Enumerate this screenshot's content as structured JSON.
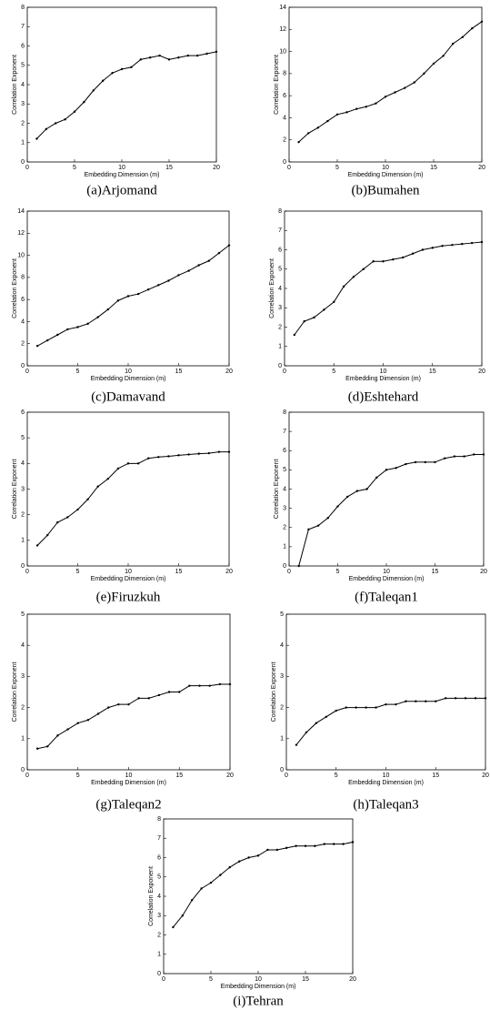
{
  "chart_data": [
    {
      "type": "line",
      "caption": "(a)Arjomand",
      "xlabel": "Embedding Dimension (m)",
      "ylabel": "Correlation Exponent",
      "color": "#000000",
      "x": [
        1,
        2,
        3,
        4,
        5,
        6,
        7,
        8,
        9,
        10,
        11,
        12,
        13,
        14,
        15,
        16,
        17,
        18,
        19,
        20
      ],
      "values": [
        1.2,
        1.7,
        2.0,
        2.2,
        2.6,
        3.1,
        3.7,
        4.2,
        4.6,
        4.8,
        4.9,
        5.3,
        5.4,
        5.5,
        5.3,
        5.4,
        5.5,
        5.5,
        5.6,
        5.7
      ],
      "xlim": [
        0,
        20
      ],
      "xticks": [
        0,
        5,
        10,
        15,
        20
      ],
      "ylim": [
        0,
        8
      ],
      "yticks": [
        0,
        1,
        2,
        3,
        4,
        5,
        6,
        7,
        8
      ]
    },
    {
      "type": "line",
      "caption": "(b)Bumahen",
      "xlabel": "Embedding Dimension (m)",
      "ylabel": "Correlation Exponent",
      "color": "#000000",
      "x": [
        1,
        2,
        3,
        4,
        5,
        6,
        7,
        8,
        9,
        10,
        11,
        12,
        13,
        14,
        15,
        16,
        17,
        18,
        19,
        20
      ],
      "values": [
        1.8,
        2.6,
        3.1,
        3.7,
        4.3,
        4.5,
        4.8,
        5.0,
        5.3,
        5.9,
        6.3,
        6.7,
        7.2,
        8.0,
        8.9,
        9.6,
        10.7,
        11.3,
        12.1,
        12.7
      ],
      "xlim": [
        0,
        20
      ],
      "xticks": [
        0,
        5,
        10,
        15,
        20
      ],
      "ylim": [
        0,
        14
      ],
      "yticks": [
        0,
        2,
        4,
        6,
        8,
        10,
        12,
        14
      ]
    },
    {
      "type": "line",
      "caption": "(c)Damavand",
      "xlabel": "Embedding Dimension (m)",
      "ylabel": "Correlation Exponent",
      "color": "#000000",
      "x": [
        1,
        2,
        3,
        4,
        5,
        6,
        7,
        8,
        9,
        10,
        11,
        12,
        13,
        14,
        15,
        16,
        17,
        18,
        19,
        20
      ],
      "values": [
        1.8,
        2.3,
        2.8,
        3.3,
        3.5,
        3.8,
        4.4,
        5.1,
        5.9,
        6.3,
        6.5,
        6.9,
        7.3,
        7.7,
        8.2,
        8.6,
        9.1,
        9.5,
        10.2,
        10.9
      ],
      "xlim": [
        0,
        20
      ],
      "xticks": [
        0,
        5,
        10,
        15,
        20
      ],
      "ylim": [
        0,
        14
      ],
      "yticks": [
        0,
        2,
        4,
        6,
        8,
        10,
        12,
        14
      ]
    },
    {
      "type": "line",
      "caption": "(d)Eshtehard",
      "xlabel": "Embedding Dimension (m)",
      "ylabel": "Correlation Exponent",
      "color": "#000000",
      "x": [
        1,
        2,
        3,
        4,
        5,
        6,
        7,
        8,
        9,
        10,
        11,
        12,
        13,
        14,
        15,
        16,
        17,
        18,
        19,
        20
      ],
      "values": [
        1.6,
        2.3,
        2.5,
        2.9,
        3.3,
        4.1,
        4.6,
        5.0,
        5.4,
        5.4,
        5.5,
        5.6,
        5.8,
        6.0,
        6.1,
        6.2,
        6.25,
        6.3,
        6.35,
        6.4
      ],
      "xlim": [
        0,
        20
      ],
      "xticks": [
        0,
        5,
        10,
        15,
        20
      ],
      "ylim": [
        0,
        8
      ],
      "yticks": [
        0,
        1,
        2,
        3,
        4,
        5,
        6,
        7,
        8
      ]
    },
    {
      "type": "line",
      "caption": "(e)Firuzkuh",
      "xlabel": "Embedding Dimension (m)",
      "ylabel": "Correlation Exponent",
      "color": "#000000",
      "x": [
        1,
        2,
        3,
        4,
        5,
        6,
        7,
        8,
        9,
        10,
        11,
        12,
        13,
        14,
        15,
        16,
        17,
        18,
        19,
        20
      ],
      "values": [
        0.8,
        1.2,
        1.7,
        1.9,
        2.2,
        2.6,
        3.1,
        3.4,
        3.8,
        4.0,
        4.0,
        4.2,
        4.25,
        4.28,
        4.32,
        4.35,
        4.38,
        4.4,
        4.45,
        4.45
      ],
      "xlim": [
        0,
        20
      ],
      "xticks": [
        0,
        5,
        10,
        15,
        20
      ],
      "ylim": [
        0,
        6
      ],
      "yticks": [
        0,
        1,
        2,
        3,
        4,
        5,
        6
      ]
    },
    {
      "type": "line",
      "caption": "(f)Taleqan1",
      "xlabel": "Embedding Dimension (m)",
      "ylabel": "Correlation Exponent",
      "color": "#000000",
      "x": [
        1,
        2,
        3,
        4,
        5,
        6,
        7,
        8,
        9,
        10,
        11,
        12,
        13,
        14,
        15,
        16,
        17,
        18,
        19,
        20
      ],
      "values": [
        0,
        1.9,
        2.1,
        2.5,
        3.1,
        3.6,
        3.9,
        4.0,
        4.6,
        5.0,
        5.1,
        5.3,
        5.4,
        5.4,
        5.4,
        5.6,
        5.7,
        5.7,
        5.8,
        5.8
      ],
      "xlim": [
        0,
        20
      ],
      "xticks": [
        0,
        5,
        10,
        15,
        20
      ],
      "ylim": [
        0,
        8
      ],
      "yticks": [
        0,
        1,
        2,
        3,
        4,
        5,
        6,
        7,
        8
      ]
    },
    {
      "type": "line",
      "caption": "(g)Taleqan2",
      "xlabel": "Embedding Dimension (m)",
      "ylabel": "Correlation Exponent",
      "color": "#000000",
      "x": [
        1,
        2,
        3,
        4,
        5,
        6,
        7,
        8,
        9,
        10,
        11,
        12,
        13,
        14,
        15,
        16,
        17,
        18,
        19,
        20
      ],
      "values": [
        0.68,
        0.75,
        1.1,
        1.3,
        1.5,
        1.6,
        1.8,
        2.0,
        2.1,
        2.1,
        2.3,
        2.3,
        2.4,
        2.5,
        2.5,
        2.7,
        2.7,
        2.7,
        2.75,
        2.75
      ],
      "xlim": [
        0,
        20
      ],
      "xticks": [
        0,
        5,
        10,
        15,
        20
      ],
      "ylim": [
        0,
        5
      ],
      "yticks": [
        0,
        1,
        2,
        3,
        4,
        5
      ]
    },
    {
      "type": "line",
      "caption": "(h)Taleqan3",
      "xlabel": "Embedding Dimension (m)",
      "ylabel": "Correlation Exponent",
      "color": "#000000",
      "x": [
        1,
        2,
        3,
        4,
        5,
        6,
        7,
        8,
        9,
        10,
        11,
        12,
        13,
        14,
        15,
        16,
        17,
        18,
        19,
        20
      ],
      "values": [
        0.8,
        1.2,
        1.5,
        1.7,
        1.9,
        2.0,
        2.0,
        2.0,
        2.0,
        2.1,
        2.1,
        2.2,
        2.2,
        2.2,
        2.2,
        2.3,
        2.3,
        2.3,
        2.3,
        2.3
      ],
      "xlim": [
        0,
        20
      ],
      "xticks": [
        0,
        5,
        10,
        15,
        20
      ],
      "ylim": [
        0,
        5
      ],
      "yticks": [
        0,
        1,
        2,
        3,
        4,
        5
      ]
    },
    {
      "type": "line",
      "caption": "(i)Tehran",
      "xlabel": "Embedding Dimension (m)",
      "ylabel": "Correlation Exponent",
      "color": "#000000",
      "x": [
        1,
        2,
        3,
        4,
        5,
        6,
        7,
        8,
        9,
        10,
        11,
        12,
        13,
        14,
        15,
        16,
        17,
        18,
        19,
        20
      ],
      "values": [
        2.4,
        3.0,
        3.8,
        4.4,
        4.7,
        5.1,
        5.5,
        5.8,
        6.0,
        6.1,
        6.4,
        6.4,
        6.5,
        6.6,
        6.6,
        6.6,
        6.7,
        6.7,
        6.7,
        6.8
      ],
      "xlim": [
        0,
        20
      ],
      "xticks": [
        0,
        5,
        10,
        15,
        20
      ],
      "ylim": [
        0,
        8
      ],
      "yticks": [
        0,
        1,
        2,
        3,
        4,
        5,
        6,
        7,
        8
      ]
    }
  ]
}
